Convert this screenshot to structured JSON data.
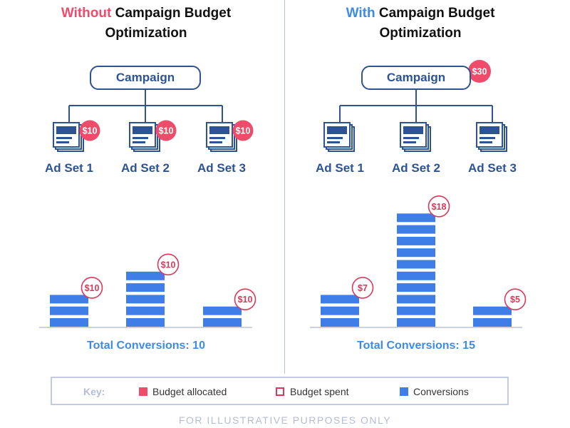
{
  "left": {
    "title_accent": "Without",
    "title_rest": " Campaign Budget",
    "title_line2": "Optimization",
    "campaign_label": "Campaign",
    "campaign_budget": null,
    "ad_sets": [
      {
        "label": "Ad Set 1",
        "budget": "$10",
        "spent": "$10",
        "conversions": 3
      },
      {
        "label": "Ad Set 2",
        "budget": "$10",
        "spent": "$10",
        "conversions": 5
      },
      {
        "label": "Ad Set 3",
        "budget": "$10",
        "spent": "$10",
        "conversions": 2
      }
    ],
    "total": "Total Conversions: 10"
  },
  "right": {
    "title_accent": "With",
    "title_rest": " Campaign Budget",
    "title_line2": "Optimization",
    "campaign_label": "Campaign",
    "campaign_budget": "$30",
    "ad_sets": [
      {
        "label": "Ad Set 1",
        "budget": null,
        "spent": "$7",
        "conversions": 3
      },
      {
        "label": "Ad Set 2",
        "budget": null,
        "spent": "$18",
        "conversions": 10
      },
      {
        "label": "Ad Set 3",
        "budget": null,
        "spent": "$5",
        "conversions": 2
      }
    ],
    "total": "Total Conversions: 15"
  },
  "key": {
    "title": "Key:",
    "allocated": "Budget allocated",
    "spent": "Budget spent",
    "conversions": "Conversions"
  },
  "footer": "FOR ILLUSTRATIVE PURPOSES ONLY",
  "colors": {
    "accent_red": "#ef4b6a",
    "accent_blue": "#3c8ce7",
    "navy": "#2d5395",
    "bar_blue": "#3e7ee6",
    "divider": "#b7bfda"
  }
}
